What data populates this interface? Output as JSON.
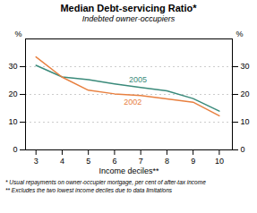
{
  "chart_data": {
    "type": "line",
    "title": "Median Debt-servicing Ratio*",
    "subtitle": "Indebted owner-occupiers",
    "xlabel": "Income deciles**",
    "ylabel": "%",
    "y2label": "%",
    "x": [
      3,
      4,
      5,
      6,
      7,
      8,
      9,
      10
    ],
    "series": [
      {
        "name": "2005",
        "color": "#3a8a7a",
        "values": [
          30.5,
          26.3,
          25.3,
          23.8,
          22.5,
          21.3,
          18.5,
          14.0
        ]
      },
      {
        "name": "2002",
        "color": "#e88040",
        "values": [
          33.5,
          26.2,
          21.5,
          20.2,
          19.6,
          18.4,
          17.2,
          12.3
        ]
      }
    ],
    "xlim": [
      2.6,
      10.5
    ],
    "xticks": [
      3,
      4,
      5,
      6,
      7,
      8,
      9,
      10
    ],
    "ylim": [
      0,
      40
    ],
    "yticks": [
      0,
      10,
      20,
      30
    ],
    "y2lim": [
      0,
      40
    ],
    "y2ticks": [
      0,
      10,
      20,
      30
    ],
    "grid": true,
    "annotations": [
      {
        "text": "2005",
        "x": 6.55,
        "y": 24.2
      },
      {
        "text": "2002",
        "x": 6.35,
        "y": 18.2
      }
    ],
    "footnotes": [
      "* Usual repayments on owner-occupier mortgage, per cent of after-tax income",
      "** Excludes the two lowest income deciles due to data limitations"
    ]
  }
}
